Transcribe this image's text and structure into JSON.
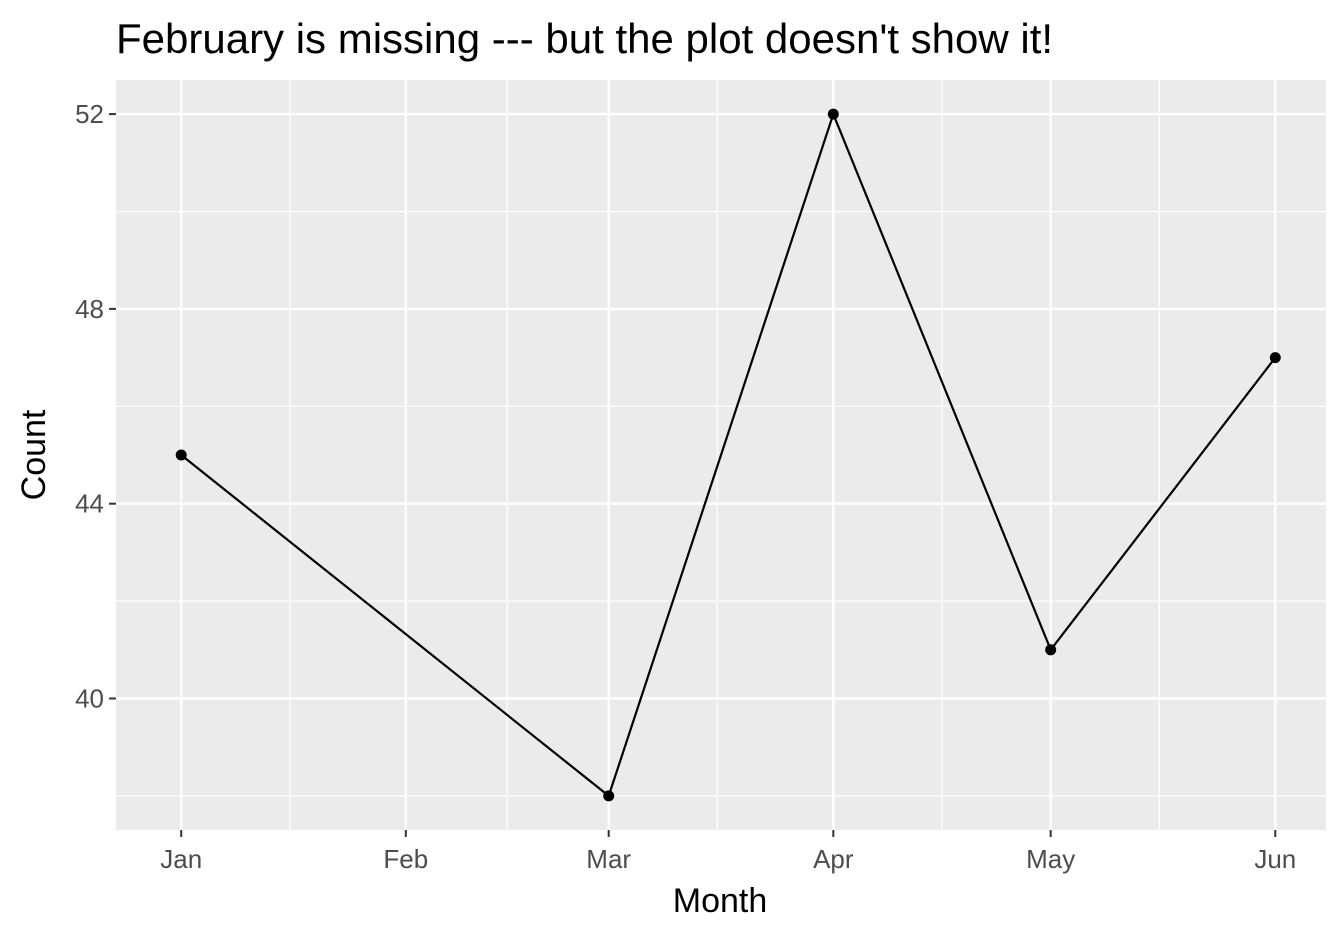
{
  "chart_data": {
    "type": "line",
    "title": "February is missing --- but the plot doesn't show it!",
    "xlabel": "Month",
    "ylabel": "Count",
    "x_ticks": [
      "Jan",
      "Feb",
      "Mar",
      "Apr",
      "May",
      "Jun"
    ],
    "y_ticks": [
      40,
      44,
      48,
      52
    ],
    "series": [
      {
        "x": [
          "2021-01-01",
          "2021-03-01",
          "2021-04-01",
          "2021-05-01",
          "2021-06-01"
        ],
        "x_labels": [
          "Jan",
          "Mar",
          "Apr",
          "May",
          "Jun"
        ],
        "values": [
          45,
          38,
          52,
          41,
          47
        ]
      }
    ],
    "xlim": [
      "2020-12-23",
      "2021-06-08"
    ],
    "ylim": [
      37.3,
      52.7
    ],
    "grid": true,
    "colors": {
      "panel": "#ebebeb",
      "grid": "#ffffff",
      "line": "#000000",
      "tick": "#333333"
    }
  }
}
